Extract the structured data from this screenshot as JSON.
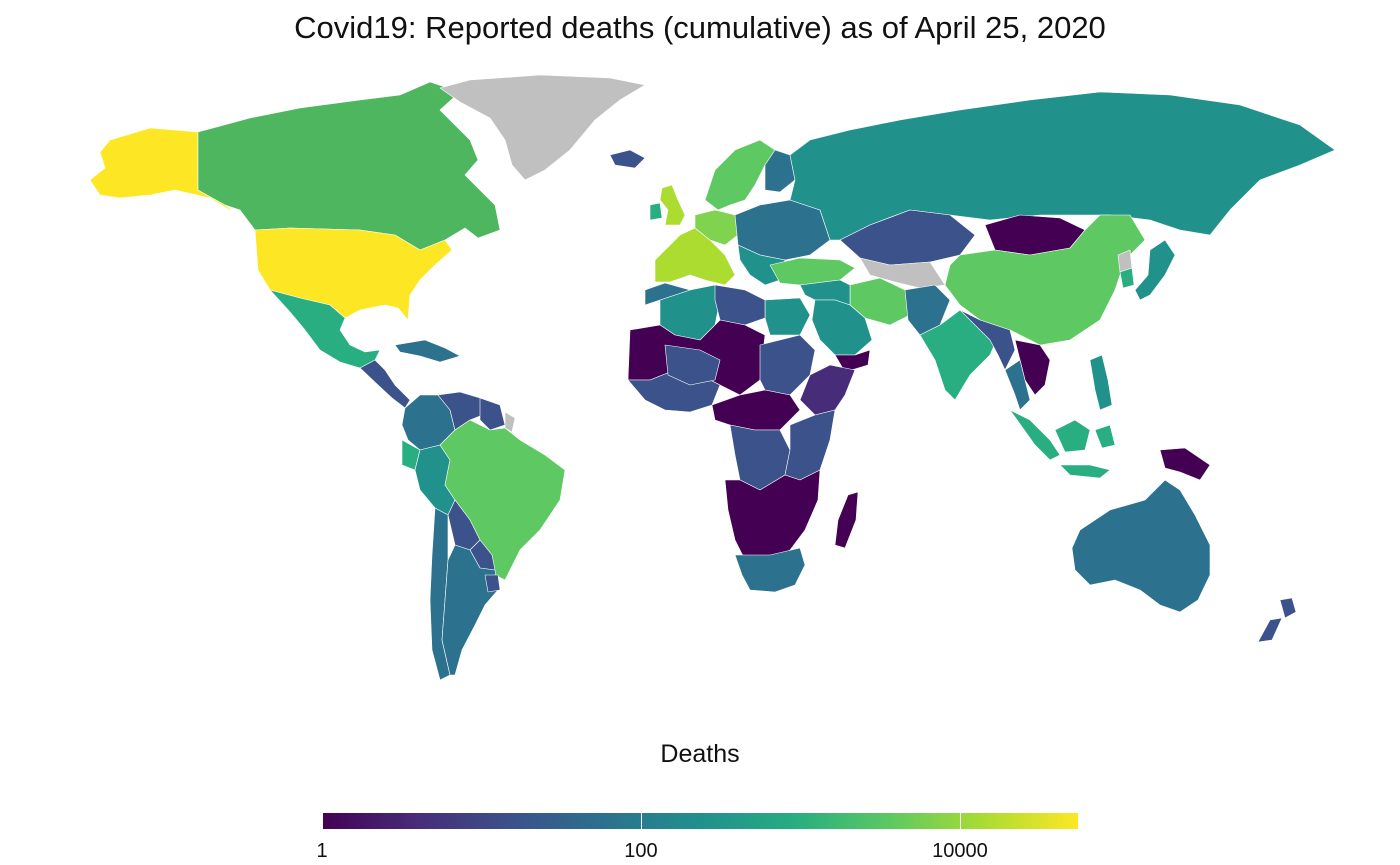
{
  "title": "Covid19: Reported deaths (cumulative) as of April 25, 2020",
  "legend": {
    "title": "Deaths",
    "scale": "log10",
    "min": 1,
    "max": 55000,
    "ticks": [
      {
        "value": 1,
        "label": "1"
      },
      {
        "value": 100,
        "label": "100"
      },
      {
        "value": 10000,
        "label": "10000"
      }
    ],
    "palette": [
      "#440154",
      "#472c7a",
      "#3b518b",
      "#2c718e",
      "#21908d",
      "#27ad81",
      "#5cc863",
      "#aadc32",
      "#fde725"
    ],
    "no_data_color": "#c0c0c0"
  },
  "colors": {
    "no_data": "#c0c0c0",
    "v1": "#440154",
    "v2": "#3b528b",
    "v3": "#2c728e",
    "v4": "#21918c",
    "v5": "#28ae80",
    "v6": "#5ec962",
    "v7": "#addc30",
    "v8": "#fde725"
  },
  "regions": [
    {
      "name": "alaska",
      "color": "#fde725"
    },
    {
      "name": "canada",
      "color": "#4fb660"
    },
    {
      "name": "greenland",
      "color": "#c0c0c0"
    },
    {
      "name": "usa",
      "color": "#fde725"
    },
    {
      "name": "mexico",
      "color": "#28ae80"
    },
    {
      "name": "central-america",
      "color": "#3b528b"
    },
    {
      "name": "caribbean",
      "color": "#2c728e"
    },
    {
      "name": "colombia",
      "color": "#2c728e"
    },
    {
      "name": "venezuela",
      "color": "#3b528b"
    },
    {
      "name": "guyana-suriname",
      "color": "#3b528b"
    },
    {
      "name": "french-guiana",
      "color": "#c0c0c0"
    },
    {
      "name": "ecuador",
      "color": "#28ae80"
    },
    {
      "name": "peru",
      "color": "#21918c"
    },
    {
      "name": "brazil",
      "color": "#5ec962"
    },
    {
      "name": "bolivia",
      "color": "#3b528b"
    },
    {
      "name": "paraguay",
      "color": "#3b528b"
    },
    {
      "name": "chile",
      "color": "#2c728e"
    },
    {
      "name": "argentina",
      "color": "#2c728e"
    },
    {
      "name": "uruguay",
      "color": "#3b528b"
    },
    {
      "name": "iceland",
      "color": "#3b528b"
    },
    {
      "name": "uk",
      "color": "#addc30"
    },
    {
      "name": "ireland",
      "color": "#28ae80"
    },
    {
      "name": "scandinavia",
      "color": "#5ec962"
    },
    {
      "name": "finland",
      "color": "#2c728e"
    },
    {
      "name": "western-europe",
      "color": "#addc30"
    },
    {
      "name": "germany",
      "color": "#7fd34e"
    },
    {
      "name": "eastern-europe",
      "color": "#2c728e"
    },
    {
      "name": "balkans",
      "color": "#21918c"
    },
    {
      "name": "russia",
      "color": "#21918c"
    },
    {
      "name": "turkey",
      "color": "#5ec962"
    },
    {
      "name": "kazakhstan",
      "color": "#3b528b"
    },
    {
      "name": "mongolia",
      "color": "#440154"
    },
    {
      "name": "china",
      "color": "#5ec962"
    },
    {
      "name": "north-korea",
      "color": "#c0c0c0"
    },
    {
      "name": "korea",
      "color": "#28ae80"
    },
    {
      "name": "japan",
      "color": "#21918c"
    },
    {
      "name": "central-asia-south",
      "color": "#c0c0c0"
    },
    {
      "name": "iran",
      "color": "#5ec962"
    },
    {
      "name": "afghanistan-pakistan",
      "color": "#2c728e"
    },
    {
      "name": "india",
      "color": "#28ae80"
    },
    {
      "name": "nepal-myanmar",
      "color": "#3b528b"
    },
    {
      "name": "indochina",
      "color": "#440154"
    },
    {
      "name": "thailand",
      "color": "#2c728e"
    },
    {
      "name": "middle-east",
      "color": "#21918c"
    },
    {
      "name": "saudi-arabia",
      "color": "#21918c"
    },
    {
      "name": "yemen",
      "color": "#440154"
    },
    {
      "name": "egypt",
      "color": "#21918c"
    },
    {
      "name": "algeria",
      "color": "#21918c"
    },
    {
      "name": "morocco",
      "color": "#2c728e"
    },
    {
      "name": "libya",
      "color": "#3b528b"
    },
    {
      "name": "sahel",
      "color": "#440154"
    },
    {
      "name": "west-africa",
      "color": "#3b528b"
    },
    {
      "name": "mali-niger",
      "color": "#3b528b"
    },
    {
      "name": "chad-sudan",
      "color": "#3b528b"
    },
    {
      "name": "ethiopia-horn",
      "color": "#472c7a"
    },
    {
      "name": "central-africa",
      "color": "#440154"
    },
    {
      "name": "drc",
      "color": "#3b528b"
    },
    {
      "name": "east-africa",
      "color": "#3b528b"
    },
    {
      "name": "southern-africa",
      "color": "#440154"
    },
    {
      "name": "south-africa",
      "color": "#2c728e"
    },
    {
      "name": "madagascar",
      "color": "#440154"
    },
    {
      "name": "indonesia",
      "color": "#28ae80"
    },
    {
      "name": "philippines",
      "color": "#21918c"
    },
    {
      "name": "png",
      "color": "#440154"
    },
    {
      "name": "australia",
      "color": "#2c728e"
    },
    {
      "name": "new-zealand",
      "color": "#3b528b"
    }
  ]
}
